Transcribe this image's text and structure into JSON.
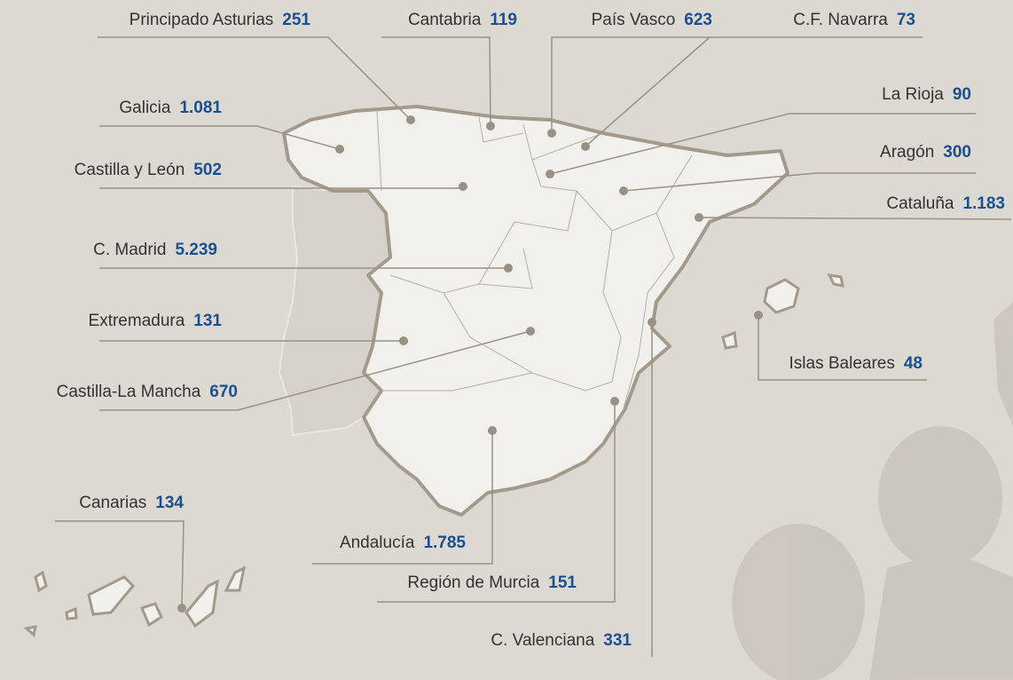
{
  "regions": [
    {
      "name": "Principado Asturias",
      "value": "251"
    },
    {
      "name": "Cantabria",
      "value": "119"
    },
    {
      "name": "País Vasco",
      "value": "623"
    },
    {
      "name": "C.F. Navarra",
      "value": "73"
    },
    {
      "name": "Galicia",
      "value": "1.081"
    },
    {
      "name": "La Rioja",
      "value": "90"
    },
    {
      "name": "Castilla y León",
      "value": "502"
    },
    {
      "name": "Aragón",
      "value": "300"
    },
    {
      "name": "Cataluña",
      "value": "1.183"
    },
    {
      "name": "C. Madrid",
      "value": "5.239"
    },
    {
      "name": "Extremadura",
      "value": "131"
    },
    {
      "name": "Islas Baleares",
      "value": "48"
    },
    {
      "name": "Castilla-La Mancha",
      "value": "670"
    },
    {
      "name": "Canarias",
      "value": "134"
    },
    {
      "name": "Andalucía",
      "value": "1.785"
    },
    {
      "name": "Región de Murcia",
      "value": "151"
    },
    {
      "name": "C. Valenciana",
      "value": "331"
    }
  ]
}
